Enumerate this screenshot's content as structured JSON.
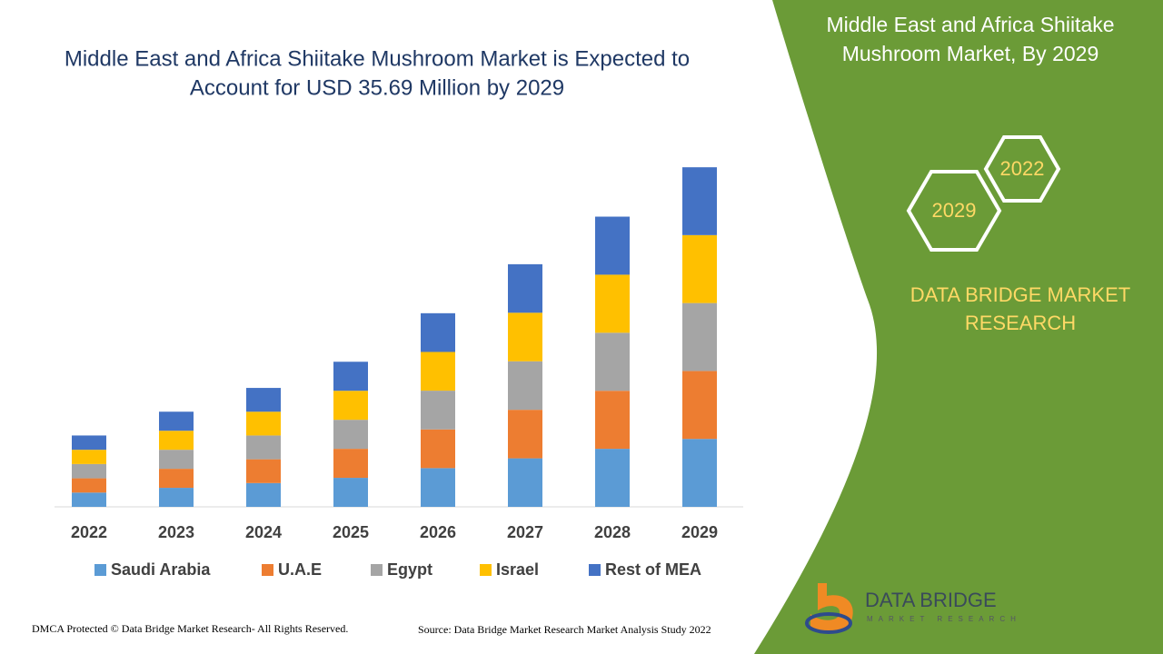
{
  "chart_data": {
    "type": "stacked-bar",
    "title": [
      "Middle East and Africa Shiitake Mushroom Market is Expected to",
      "Account for USD 35.69 Million by 2029"
    ],
    "categories": [
      "2022",
      "2023",
      "2024",
      "2025",
      "2026",
      "2027",
      "2028",
      "2029"
    ],
    "ylim": [
      0,
      40
    ],
    "series": [
      {
        "name": "Saudi Arabia",
        "color": "#5b9bd5",
        "values": [
          1.5,
          2.0,
          2.5,
          3.05,
          4.07,
          5.1,
          6.1,
          7.14
        ]
      },
      {
        "name": "U.A.E",
        "color": "#ed7d31",
        "values": [
          1.5,
          2.0,
          2.5,
          3.05,
          4.07,
          5.1,
          6.1,
          7.14
        ]
      },
      {
        "name": "Egypt",
        "color": "#a5a5a5",
        "values": [
          1.5,
          2.0,
          2.5,
          3.05,
          4.07,
          5.1,
          6.1,
          7.14
        ]
      },
      {
        "name": "Israel",
        "color": "#ffc000",
        "values": [
          1.5,
          2.0,
          2.5,
          3.05,
          4.07,
          5.1,
          6.1,
          7.14
        ]
      },
      {
        "name": "Rest of MEA",
        "color": "#4472c4",
        "values": [
          1.5,
          2.0,
          2.5,
          3.05,
          4.07,
          5.1,
          6.1,
          7.13
        ]
      }
    ]
  },
  "sidebar": {
    "title": [
      "Middle East and Africa Shiitake",
      "Mushroom Market, By 2029"
    ],
    "hexagons": [
      "2022",
      "2029"
    ],
    "brand": [
      "DATA BRIDGE MARKET",
      "RESEARCH"
    ]
  },
  "logo": {
    "name": "DATA BRIDGE",
    "tagline": "MARKET RESEARCH"
  },
  "footer": {
    "left": "DMCA Protected © Data Bridge Market Research- All Rights Reserved.",
    "right": "Source: Data Bridge Market Research Market Analysis Study 2022"
  }
}
